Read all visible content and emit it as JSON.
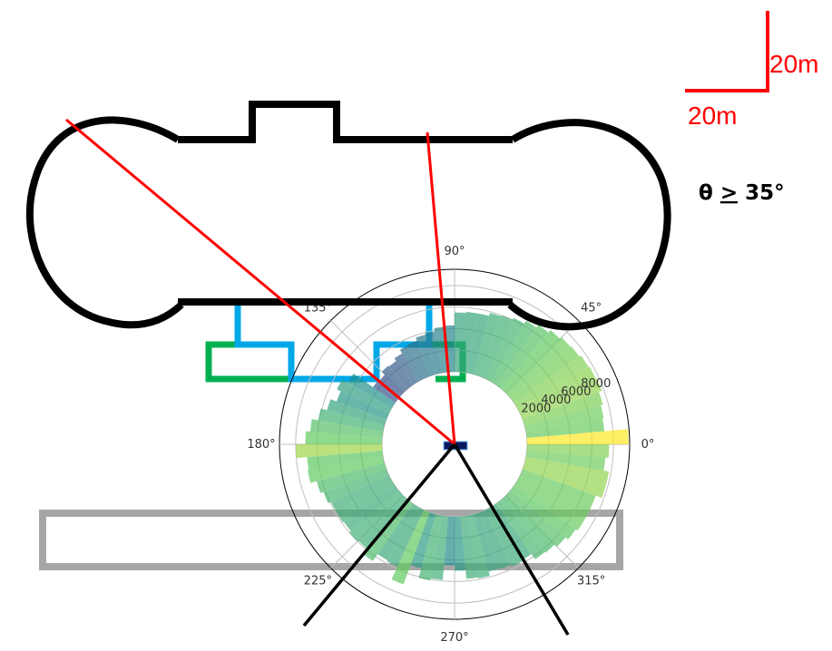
{
  "colors": {
    "scale_bar": "#ff0000",
    "outline": "#000000",
    "blue_structure": "#00a8e8",
    "green_structure": "#00b050",
    "gray_structure": "#a6a6a6",
    "sight_line": "#ff0000",
    "cone_line": "#000000",
    "grid": "#bfbfbf"
  },
  "scale": {
    "vertical_label": "20m",
    "horizontal_label": "20m"
  },
  "threshold_label": {
    "symbol": "θ",
    "operator": ">",
    "value": "35°"
  },
  "chart_data": {
    "type": "polar-bar",
    "title": "",
    "theta_direction": "counterclockwise",
    "theta_zero": "east",
    "angle_tick_labels": [
      "0°",
      "45°",
      "90°",
      "135°",
      "180°",
      "225°",
      "270°",
      "315°"
    ],
    "radial_tick_values": [
      2000,
      4000,
      6000,
      8000
    ],
    "radial_tick_labels": [
      "2000",
      "4000",
      "6000",
      "8000"
    ],
    "radial_label_angle_deg": 22.5,
    "rmax": 9500,
    "bin_width_deg": 5,
    "bin_start_deg": [
      0,
      5,
      10,
      15,
      20,
      25,
      30,
      35,
      40,
      45,
      50,
      55,
      60,
      65,
      70,
      75,
      80,
      85,
      90,
      95,
      100,
      105,
      110,
      115,
      120,
      125,
      130,
      135,
      140,
      145,
      150,
      155,
      160,
      165,
      170,
      175,
      180,
      185,
      190,
      195,
      200,
      205,
      210,
      215,
      220,
      225,
      230,
      235,
      240,
      245,
      250,
      255,
      260,
      265,
      270,
      275,
      280,
      285,
      290,
      295,
      300,
      305,
      310,
      315,
      320,
      325,
      330,
      335,
      340,
      345,
      350,
      355
    ],
    "values": [
      9400,
      7200,
      7300,
      7500,
      7800,
      7700,
      7600,
      7400,
      7300,
      7100,
      6800,
      6500,
      6200,
      6000,
      5900,
      5600,
      5600,
      5500,
      4300,
      4200,
      3900,
      3800,
      3500,
      3400,
      3000,
      2700,
      2800,
      2400,
      2500,
      4700,
      5300,
      4900,
      5500,
      6100,
      6700,
      7100,
      8000,
      7000,
      7100,
      6500,
      6200,
      5900,
      5900,
      5800,
      6000,
      5900,
      6500,
      5700,
      5800,
      7100,
      5200,
      6100,
      5900,
      4500,
      5000,
      5800,
      5900,
      5500,
      5600,
      5800,
      5700,
      6300,
      6400,
      6700,
      7000,
      7200,
      7200,
      7200,
      7800,
      7800,
      7300,
      7600
    ]
  }
}
